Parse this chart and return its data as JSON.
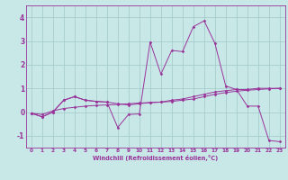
{
  "xlabel": "Windchill (Refroidissement éolien,°C)",
  "xlim": [
    -0.5,
    23.5
  ],
  "ylim": [
    -1.5,
    4.5
  ],
  "yticks": [
    -1,
    0,
    1,
    2,
    3,
    4
  ],
  "xticks": [
    0,
    1,
    2,
    3,
    4,
    5,
    6,
    7,
    8,
    9,
    10,
    11,
    12,
    13,
    14,
    15,
    16,
    17,
    18,
    19,
    20,
    21,
    22,
    23
  ],
  "background_color": "#c8e8e8",
  "grid_color": "#a0c8c8",
  "line_color": "#993399",
  "spine_color": "#993399",
  "series": [
    {
      "x": [
        0,
        1,
        2,
        3,
        4,
        5,
        6,
        7,
        8,
        9,
        10,
        11,
        12,
        13,
        14,
        15,
        16,
        17,
        18,
        19,
        20,
        21,
        22,
        23
      ],
      "y": [
        -0.05,
        -0.2,
        0.0,
        0.5,
        0.65,
        0.5,
        0.45,
        0.42,
        -0.65,
        -0.1,
        -0.08,
        2.95,
        1.6,
        2.6,
        2.55,
        3.6,
        3.85,
        2.9,
        1.1,
        0.95,
        0.25,
        0.25,
        -1.2,
        -1.25
      ]
    },
    {
      "x": [
        0,
        1,
        2,
        3,
        4,
        5,
        6,
        7,
        8,
        9,
        10,
        11,
        12,
        13,
        14,
        15,
        16,
        17,
        18,
        19,
        20,
        21,
        22,
        23
      ],
      "y": [
        -0.05,
        -0.2,
        0.0,
        0.5,
        0.65,
        0.5,
        0.45,
        0.42,
        0.35,
        0.3,
        0.35,
        0.4,
        0.42,
        0.5,
        0.55,
        0.65,
        0.75,
        0.85,
        0.9,
        0.95,
        0.95,
        1.0,
        1.0,
        1.0
      ]
    },
    {
      "x": [
        0,
        1,
        2,
        3,
        4,
        5,
        6,
        7,
        8,
        9,
        10,
        11,
        12,
        13,
        14,
        15,
        16,
        17,
        18,
        19,
        20,
        21,
        22,
        23
      ],
      "y": [
        -0.05,
        -0.1,
        0.05,
        0.15,
        0.2,
        0.25,
        0.28,
        0.3,
        0.32,
        0.35,
        0.38,
        0.4,
        0.42,
        0.45,
        0.5,
        0.55,
        0.65,
        0.75,
        0.82,
        0.88,
        0.92,
        0.95,
        0.98,
        1.0
      ]
    }
  ]
}
